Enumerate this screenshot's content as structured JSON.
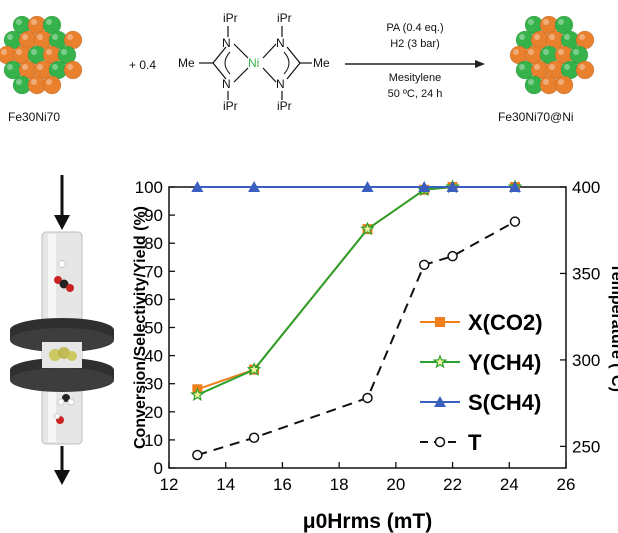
{
  "scheme": {
    "reactant_label": "Fe30Ni70",
    "reactant_parts": [
      {
        "el": "Fe",
        "n": "30"
      },
      {
        "el": "Ni",
        "n": "70"
      }
    ],
    "plus_coeff": "+ 0.4",
    "ligand": {
      "me_left": "Me",
      "me_right": "Me",
      "n": "N",
      "ni": "Ni",
      "ipr": "iPr"
    },
    "conditions_top": [
      "PA (0.4 eq.)",
      "H2 (3 bar)"
    ],
    "conditions_bottom": [
      "Mesitylene",
      "50 ºC, 24 h"
    ],
    "product_label": "Fe30Ni70@Ni",
    "colors": {
      "fe": "#e8802e",
      "ni": "#35b34a",
      "arrow": "#222222"
    }
  },
  "reactor": {
    "icon": "induction-reactor-icon",
    "colors": {
      "tube": "#e4e4e4",
      "coil": "#3a3a3a",
      "co2": "#222222",
      "o": "#cc2222",
      "h": "#eeeeee"
    }
  },
  "chart_data": {
    "type": "line",
    "xlabel": "μ0Hrms (mT)",
    "ylabel_left": "Conversion/Selectivity/Yield (%)",
    "ylabel_right": "Temperature (°C)",
    "xlim": [
      12,
      26
    ],
    "ylim_left": [
      0,
      100
    ],
    "ylim_right": [
      237.5,
      400
    ],
    "xticks": [
      12,
      14,
      16,
      18,
      20,
      22,
      24,
      26
    ],
    "yticks_left": [
      0,
      10,
      20,
      30,
      40,
      50,
      60,
      70,
      80,
      90,
      100
    ],
    "yticks_right": [
      250,
      300,
      350,
      400
    ],
    "legend_position": "lower right",
    "series": [
      {
        "name": "X(CO2)",
        "axis": "left",
        "color": "#f07e1a",
        "marker": "square",
        "style": "solid",
        "x": [
          13,
          15,
          19,
          21,
          22,
          24.2
        ],
        "y": [
          28,
          35,
          85,
          99,
          100,
          100
        ]
      },
      {
        "name": "Y(CH4)",
        "axis": "left",
        "color": "#2ca02c",
        "marker": "star",
        "style": "solid",
        "x": [
          13,
          15,
          19,
          21,
          22,
          24.2
        ],
        "y": [
          26,
          35,
          85,
          99,
          100,
          100
        ]
      },
      {
        "name": "S(CH4)",
        "axis": "left",
        "color": "#3b5fc0",
        "marker": "triangle",
        "style": "solid",
        "x": [
          13,
          15,
          19,
          21,
          22,
          24.2
        ],
        "y": [
          100,
          100,
          100,
          100,
          100,
          100
        ]
      },
      {
        "name": "T",
        "axis": "right",
        "color": "#111111",
        "marker": "circle-open",
        "style": "dashed",
        "x": [
          13,
          15,
          19,
          21,
          22,
          24.2
        ],
        "y": [
          245,
          255,
          278,
          355,
          360,
          380
        ]
      }
    ]
  }
}
